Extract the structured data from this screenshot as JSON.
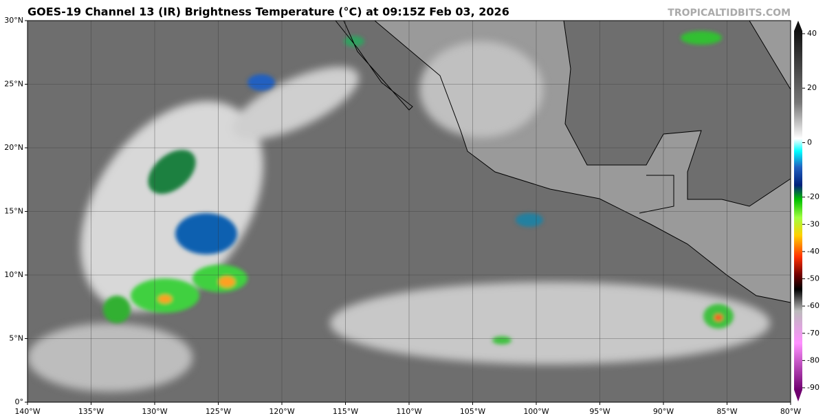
{
  "header": {
    "title": "GOES-19 Channel 13 (IR) Brightness Temperature (°C) at 09:15Z Feb 03, 2026",
    "watermark": "TROPICALTIDBITS.COM"
  },
  "map": {
    "longitude_labels": [
      "140°W",
      "135°W",
      "130°W",
      "125°W",
      "120°W",
      "115°W",
      "110°W",
      "105°W",
      "100°W",
      "95°W",
      "90°W",
      "85°W",
      "80°W"
    ],
    "latitude_labels": [
      "0°",
      "5°N",
      "10°N",
      "15°N",
      "20°N",
      "25°N",
      "30°N"
    ]
  },
  "colorbar": {
    "ticks": [
      40,
      20,
      0,
      -20,
      -30,
      -40,
      -50,
      -60,
      -70,
      -80,
      -90
    ]
  }
}
